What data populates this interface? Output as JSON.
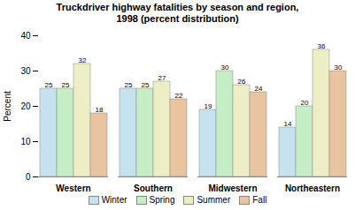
{
  "chart_data": {
    "type": "bar",
    "title": "Truckdriver highway fatalities by season and region,\n1998 (percent distribution)",
    "categories": [
      "Western",
      "Southern",
      "Midwestern",
      "Northeastern"
    ],
    "series": [
      {
        "name": "Winter",
        "color": "#c6e2ee",
        "values": [
          25,
          25,
          19,
          14
        ]
      },
      {
        "name": "Spring",
        "color": "#c6eec6",
        "values": [
          25,
          25,
          30,
          20
        ]
      },
      {
        "name": "Summer",
        "color": "#eeeec6",
        "values": [
          32,
          27,
          26,
          36
        ]
      },
      {
        "name": "Fall",
        "color": "#e8c4a0",
        "values": [
          18,
          22,
          24,
          30
        ]
      }
    ],
    "ylabel": "Percent",
    "ylim": [
      0,
      40
    ],
    "yticks": [
      0,
      10,
      20,
      30,
      40
    ],
    "grid": false,
    "legend": "bottom",
    "data_labels": true
  }
}
